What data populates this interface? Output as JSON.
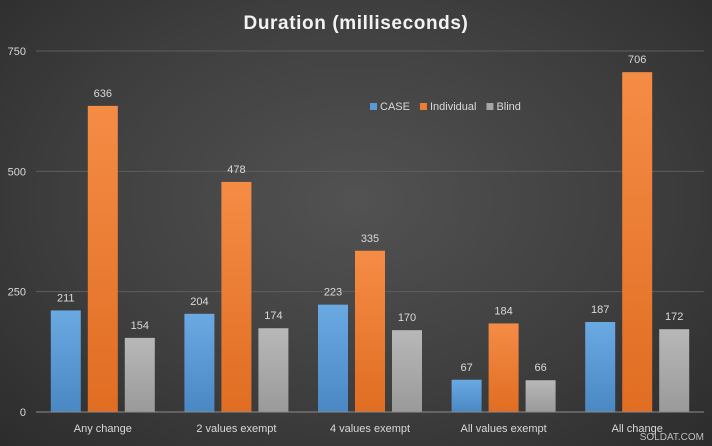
{
  "chart_data": {
    "type": "bar",
    "title": "Duration (milliseconds)",
    "xlabel": "",
    "ylabel": "",
    "categories": [
      "Any change",
      "2 values exempt",
      "4 values exempt",
      "All values exempt",
      "All change"
    ],
    "series": [
      {
        "name": "CASE",
        "values": [
          211,
          204,
          223,
          67,
          187
        ],
        "color": "#5b9bd5"
      },
      {
        "name": "Individual",
        "values": [
          636,
          478,
          335,
          184,
          706
        ],
        "color": "#ed7d31"
      },
      {
        "name": "Blind",
        "values": [
          154,
          174,
          170,
          66,
          172
        ],
        "color": "#a5a5a5"
      }
    ],
    "ylim": [
      0,
      750
    ],
    "yticks": [
      0,
      250,
      500,
      750
    ],
    "grid": true,
    "legend_position": "top-center",
    "data_labels": true
  },
  "watermark": "SOLDAT.COM"
}
